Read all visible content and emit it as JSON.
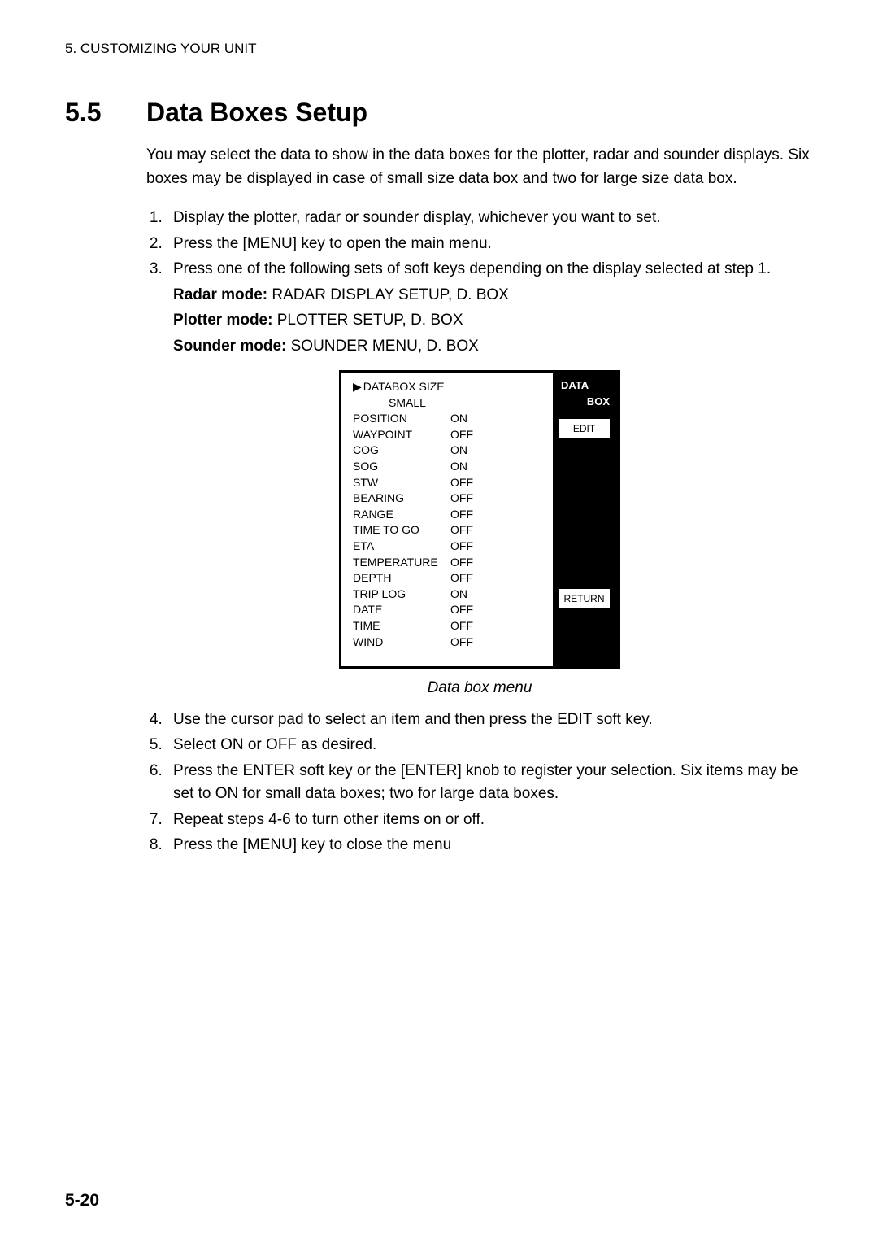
{
  "header": "5. CUSTOMIZING YOUR UNIT",
  "section": {
    "number": "5.5",
    "title": "Data Boxes Setup"
  },
  "intro": "You may select the data to show in the data boxes for the plotter, radar and sounder displays. Six boxes may be displayed in case of small size data box and two for large size data box.",
  "steps_a": [
    "Display the plotter, radar or sounder display, whichever you want to set.",
    "Press the [MENU] key to open the main menu.",
    "Press one of the following sets of soft keys depending on the display selected at step 1."
  ],
  "modes": [
    {
      "label": "Radar mode:",
      "value": " RADAR DISPLAY SETUP, D. BOX"
    },
    {
      "label": "Plotter mode:",
      "value": " PLOTTER SETUP, D. BOX"
    },
    {
      "label": "Sounder mode:",
      "value": " SOUNDER MENU, D. BOX"
    }
  ],
  "menu": {
    "size_label": "DATABOX SIZE",
    "size_value": "SMALL",
    "rows": [
      {
        "label": "POSITION",
        "value": "ON"
      },
      {
        "label": "WAYPOINT",
        "value": "OFF"
      },
      {
        "label": "COG",
        "value": "ON"
      },
      {
        "label": "SOG",
        "value": "ON"
      },
      {
        "label": "STW",
        "value": "OFF"
      },
      {
        "label": "BEARING",
        "value": "OFF"
      },
      {
        "label": "RANGE",
        "value": "OFF"
      },
      {
        "label": "TIME TO GO",
        "value": "OFF"
      },
      {
        "label": "ETA",
        "value": "OFF"
      },
      {
        "label": "TEMPERATURE",
        "value": "OFF"
      },
      {
        "label": "DEPTH",
        "value": "OFF"
      },
      {
        "label": "TRIP LOG",
        "value": "ON"
      },
      {
        "label": "DATE",
        "value": "OFF"
      },
      {
        "label": "TIME",
        "value": "OFF"
      },
      {
        "label": "WIND",
        "value": "OFF"
      }
    ],
    "panel_title1": "DATA",
    "panel_title2": "BOX",
    "softkey_edit": "EDIT",
    "softkey_return": "RETURN"
  },
  "caption": "Data box menu",
  "steps_b": [
    "Use the cursor pad to select an item and then press the EDIT soft key.",
    "Select ON or OFF as desired.",
    "Press the ENTER soft key or the [ENTER] knob to register your selection. Six items may be set to ON for small data boxes; two for large data boxes.",
    "Repeat steps 4-6 to turn other items on or off.",
    "Press the [MENU] key to close the menu"
  ],
  "page_number": "5-20"
}
